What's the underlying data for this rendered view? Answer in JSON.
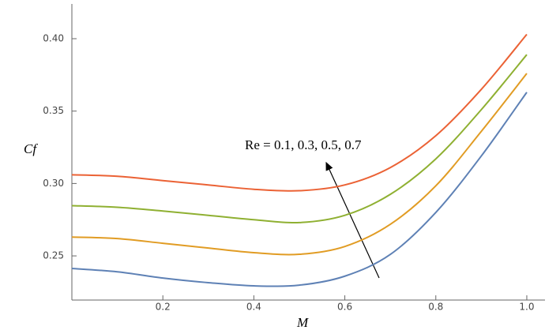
{
  "chart_data": {
    "type": "line",
    "x_label": "M",
    "y_label": "Cf",
    "annotation": "Re = 0.1, 0.3, 0.5, 0.7",
    "x": [
      0,
      0.1,
      0.2,
      0.3,
      0.4,
      0.5,
      0.6,
      0.7,
      0.8,
      0.9,
      1.0
    ],
    "series": [
      {
        "color": "#5e81b5",
        "values": [
          0.2413,
          0.239,
          0.2347,
          0.2315,
          0.2293,
          0.2298,
          0.236,
          0.251,
          0.28,
          0.319,
          0.363
        ]
      },
      {
        "color": "#e19c24",
        "values": [
          0.263,
          0.262,
          0.2587,
          0.2554,
          0.2522,
          0.2511,
          0.2565,
          0.2718,
          0.2984,
          0.336,
          0.376
        ]
      },
      {
        "color": "#8fb032",
        "values": [
          0.2847,
          0.2836,
          0.281,
          0.278,
          0.275,
          0.273,
          0.278,
          0.2925,
          0.317,
          0.351,
          0.389
        ]
      },
      {
        "color": "#eb6235",
        "values": [
          0.306,
          0.305,
          0.302,
          0.299,
          0.296,
          0.295,
          0.299,
          0.311,
          0.333,
          0.365,
          0.403
        ]
      }
    ],
    "xlim": [
      0,
      1.04
    ],
    "ylim": [
      0.2195,
      0.424
    ],
    "xticks": [
      0.2,
      0.4,
      0.6,
      0.8,
      {
        "value": 1.0,
        "label": "1.0"
      }
    ],
    "yticks": [
      {
        "value": 0.25,
        "label": "0.25"
      },
      {
        "value": 0.3,
        "label": "0.30"
      },
      {
        "value": 0.35,
        "label": "0.35"
      },
      {
        "value": 0.4,
        "label": "0.40"
      }
    ]
  }
}
